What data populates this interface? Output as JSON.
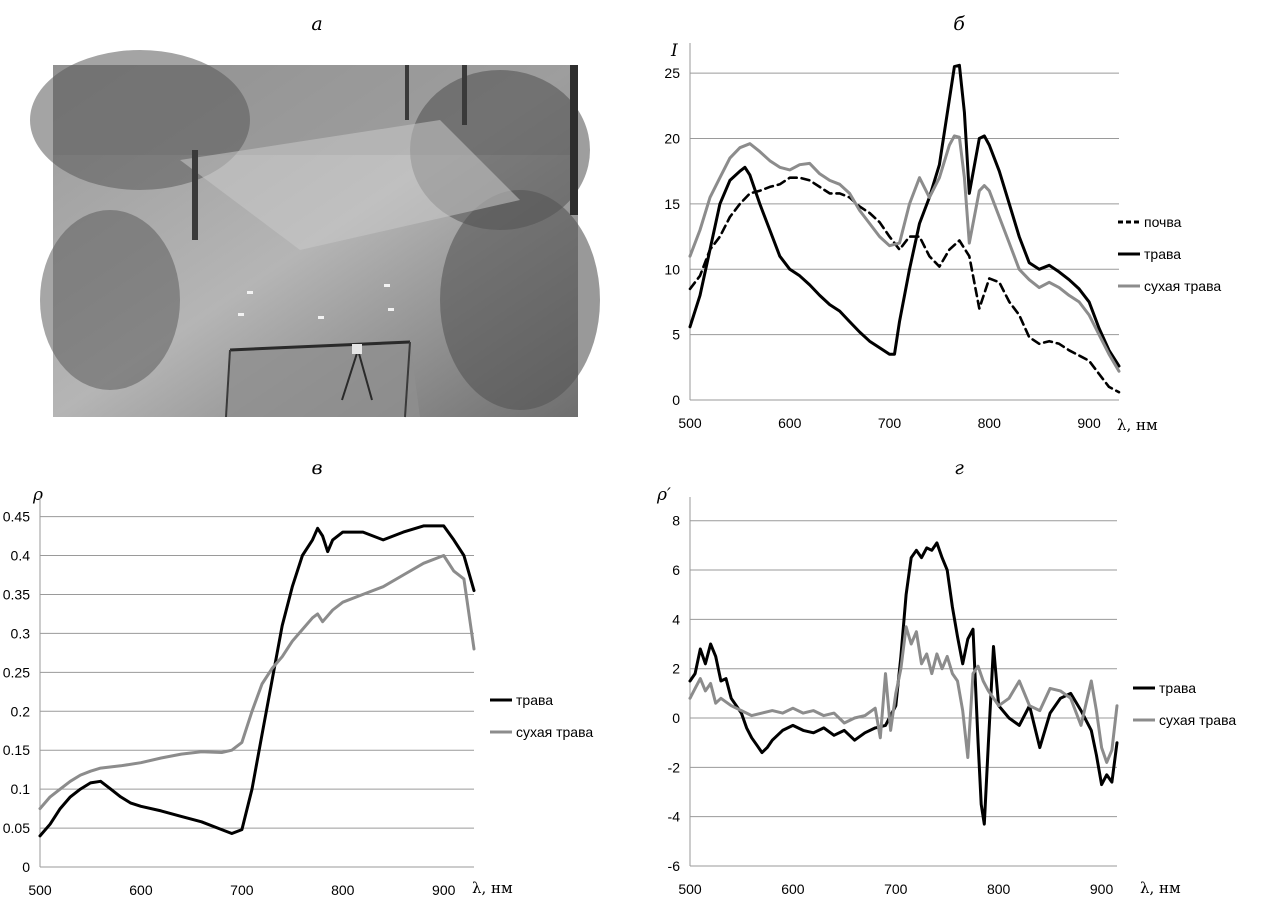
{
  "panels": {
    "a": {
      "title": "а"
    },
    "b": {
      "title": "б"
    },
    "v": {
      "title": "в"
    },
    "g": {
      "title": "г"
    }
  },
  "photo": {
    "description_icon": "field-photo"
  },
  "colors": {
    "black": "#000000",
    "gray": "#8c8c8c"
  },
  "chart_data": [
    {
      "id": "b",
      "type": "line",
      "title": "б",
      "ylabel": "I",
      "xlabel": "λ, нм",
      "xlim": [
        500,
        930
      ],
      "ylim": [
        0,
        27
      ],
      "xticks": [
        500,
        600,
        700,
        800,
        900
      ],
      "yticks": [
        0,
        5,
        10,
        15,
        20,
        25
      ],
      "grid": true,
      "legend_position": "right",
      "series": [
        {
          "name": "почва",
          "style": "dashed",
          "color": "#000000",
          "x": [
            500,
            510,
            520,
            530,
            540,
            550,
            560,
            570,
            580,
            590,
            600,
            610,
            620,
            630,
            640,
            650,
            660,
            670,
            680,
            690,
            700,
            710,
            720,
            730,
            740,
            750,
            760,
            770,
            780,
            790,
            800,
            810,
            820,
            830,
            840,
            850,
            860,
            870,
            880,
            890,
            900,
            910,
            920,
            930
          ],
          "y": [
            8.5,
            9.5,
            11.5,
            12.5,
            14,
            15,
            15.8,
            16,
            16.3,
            16.5,
            17,
            17,
            16.8,
            16.3,
            15.8,
            15.8,
            15.5,
            14.8,
            14.3,
            13.6,
            12.5,
            11.5,
            12.5,
            12.5,
            11,
            10.2,
            11.5,
            12.2,
            11,
            7,
            9.3,
            9,
            7.5,
            6.5,
            4.8,
            4.3,
            4.5,
            4.3,
            3.8,
            3.4,
            3,
            2,
            1,
            0.6
          ]
        },
        {
          "name": "трава",
          "style": "solid",
          "color": "#000000",
          "x": [
            500,
            510,
            520,
            530,
            540,
            550,
            555,
            560,
            570,
            580,
            590,
            600,
            610,
            620,
            630,
            640,
            650,
            660,
            670,
            680,
            690,
            700,
            705,
            710,
            720,
            730,
            740,
            750,
            760,
            765,
            770,
            775,
            780,
            790,
            795,
            800,
            810,
            820,
            830,
            840,
            850,
            860,
            870,
            880,
            890,
            900,
            910,
            920,
            930
          ],
          "y": [
            5.6,
            8,
            11.5,
            15,
            16.8,
            17.5,
            17.8,
            17.2,
            15,
            13,
            11,
            10,
            9.5,
            8.8,
            8,
            7.3,
            6.8,
            6,
            5.2,
            4.5,
            4,
            3.5,
            3.5,
            6,
            10,
            13.5,
            15.5,
            18,
            23,
            25.5,
            25.6,
            22,
            15.8,
            20,
            20.2,
            19.5,
            17.5,
            15,
            12.5,
            10.5,
            10,
            10.3,
            9.8,
            9.2,
            8.5,
            7.5,
            5.5,
            3.8,
            2.6
          ]
        },
        {
          "name": "сухая трава",
          "style": "solid",
          "color": "#8c8c8c",
          "x": [
            500,
            510,
            520,
            530,
            540,
            550,
            560,
            570,
            580,
            590,
            600,
            610,
            620,
            630,
            640,
            650,
            660,
            670,
            680,
            690,
            700,
            710,
            720,
            730,
            740,
            750,
            760,
            765,
            770,
            775,
            780,
            790,
            795,
            800,
            810,
            820,
            830,
            840,
            850,
            860,
            870,
            880,
            890,
            900,
            910,
            920,
            930
          ],
          "y": [
            11,
            13,
            15.5,
            17,
            18.5,
            19.3,
            19.6,
            19,
            18.3,
            17.8,
            17.6,
            18,
            18.1,
            17.3,
            16.8,
            16.5,
            15.8,
            14.5,
            13.5,
            12.5,
            11.8,
            12,
            15,
            17,
            15.5,
            17,
            19.5,
            20.2,
            20.1,
            17,
            12,
            16,
            16.4,
            16,
            14,
            12,
            10,
            9.2,
            8.6,
            9,
            8.6,
            8,
            7.5,
            6.5,
            5,
            3.5,
            2.2
          ]
        }
      ]
    },
    {
      "id": "v",
      "type": "line",
      "title": "в",
      "ylabel": "ρ",
      "xlabel": "λ, нм",
      "xlim": [
        500,
        930
      ],
      "ylim": [
        0,
        0.47
      ],
      "xticks": [
        500,
        600,
        700,
        800,
        900
      ],
      "yticks": [
        0,
        0.05,
        0.1,
        0.15,
        0.2,
        0.25,
        0.3,
        0.35,
        0.4,
        0.45
      ],
      "ytick_labels": [
        "0",
        "0.05",
        "0.1",
        "0.15",
        "0.2",
        "0.25",
        "0.3",
        "0.35",
        "0.4",
        "0.45"
      ],
      "grid": true,
      "legend_position": "right",
      "series": [
        {
          "name": "трава",
          "style": "solid",
          "color": "#000000",
          "x": [
            500,
            510,
            520,
            530,
            540,
            550,
            560,
            570,
            580,
            590,
            600,
            620,
            640,
            660,
            680,
            690,
            700,
            710,
            720,
            730,
            740,
            750,
            760,
            770,
            775,
            780,
            785,
            790,
            800,
            820,
            840,
            860,
            880,
            900,
            910,
            920,
            930
          ],
          "y": [
            0.04,
            0.055,
            0.075,
            0.09,
            0.1,
            0.108,
            0.11,
            0.1,
            0.09,
            0.082,
            0.078,
            0.072,
            0.065,
            0.058,
            0.048,
            0.043,
            0.048,
            0.1,
            0.17,
            0.24,
            0.31,
            0.36,
            0.4,
            0.42,
            0.435,
            0.425,
            0.405,
            0.42,
            0.43,
            0.43,
            0.42,
            0.43,
            0.438,
            0.438,
            0.42,
            0.4,
            0.355
          ]
        },
        {
          "name": "сухая трава",
          "style": "solid",
          "color": "#8c8c8c",
          "x": [
            500,
            510,
            520,
            530,
            540,
            550,
            560,
            580,
            600,
            620,
            640,
            660,
            680,
            690,
            700,
            710,
            720,
            730,
            740,
            750,
            760,
            770,
            775,
            780,
            790,
            800,
            820,
            840,
            860,
            880,
            900,
            910,
            920,
            930
          ],
          "y": [
            0.075,
            0.09,
            0.1,
            0.11,
            0.118,
            0.123,
            0.127,
            0.13,
            0.134,
            0.14,
            0.145,
            0.148,
            0.147,
            0.15,
            0.16,
            0.2,
            0.235,
            0.255,
            0.27,
            0.29,
            0.305,
            0.32,
            0.325,
            0.315,
            0.33,
            0.34,
            0.35,
            0.36,
            0.375,
            0.39,
            0.4,
            0.38,
            0.37,
            0.28
          ]
        }
      ]
    },
    {
      "id": "g",
      "type": "line",
      "title": "г",
      "ylabel": "ρ′",
      "xlabel": "λ, нм",
      "xlim": [
        500,
        915
      ],
      "ylim": [
        -6,
        8.8
      ],
      "xticks": [
        500,
        600,
        700,
        800,
        900
      ],
      "yticks": [
        -6,
        -4,
        -2,
        0,
        2,
        4,
        6,
        8
      ],
      "grid": true,
      "legend_position": "right",
      "series": [
        {
          "name": "трава",
          "style": "solid",
          "color": "#000000",
          "x": [
            500,
            505,
            510,
            515,
            520,
            525,
            530,
            535,
            540,
            545,
            550,
            555,
            560,
            565,
            570,
            575,
            580,
            590,
            600,
            610,
            620,
            630,
            640,
            650,
            660,
            670,
            680,
            690,
            700,
            705,
            710,
            715,
            720,
            725,
            730,
            735,
            740,
            745,
            750,
            755,
            760,
            765,
            770,
            775,
            780,
            783,
            786,
            790,
            795,
            800,
            810,
            820,
            830,
            840,
            850,
            860,
            870,
            880,
            890,
            895,
            900,
            905,
            910,
            915
          ],
          "y": [
            1.5,
            1.8,
            2.8,
            2.2,
            3,
            2.5,
            1.5,
            1.6,
            0.8,
            0.5,
            0.2,
            -0.4,
            -0.8,
            -1.1,
            -1.4,
            -1.2,
            -0.9,
            -0.5,
            -0.3,
            -0.5,
            -0.6,
            -0.4,
            -0.7,
            -0.5,
            -0.9,
            -0.6,
            -0.4,
            -0.3,
            0.5,
            2.5,
            5,
            6.5,
            6.8,
            6.5,
            6.9,
            6.8,
            7.1,
            6.5,
            6,
            4.5,
            3.3,
            2.2,
            3.2,
            3.6,
            -1,
            -3.5,
            -4.3,
            -1,
            2.9,
            0.5,
            0,
            -0.3,
            0.5,
            -1.2,
            0.2,
            0.8,
            1,
            0.3,
            -0.5,
            -1.5,
            -2.7,
            -2.3,
            -2.6,
            -1
          ]
        },
        {
          "name": "сухая трава",
          "style": "solid",
          "color": "#8c8c8c",
          "x": [
            500,
            505,
            510,
            515,
            520,
            525,
            530,
            540,
            550,
            560,
            570,
            580,
            590,
            600,
            610,
            620,
            630,
            640,
            650,
            660,
            670,
            680,
            685,
            690,
            695,
            700,
            705,
            710,
            715,
            720,
            725,
            730,
            735,
            740,
            745,
            750,
            755,
            760,
            765,
            770,
            775,
            780,
            785,
            790,
            800,
            810,
            820,
            830,
            840,
            850,
            860,
            870,
            880,
            890,
            895,
            900,
            905,
            910,
            915
          ],
          "y": [
            0.8,
            1.2,
            1.6,
            1.1,
            1.4,
            0.6,
            0.8,
            0.5,
            0.3,
            0.1,
            0.2,
            0.3,
            0.2,
            0.4,
            0.2,
            0.3,
            0.1,
            0.2,
            -0.2,
            0,
            0.1,
            0.4,
            -0.8,
            1.8,
            -0.5,
            1,
            2,
            3.7,
            3,
            3.5,
            2.2,
            2.6,
            1.8,
            2.6,
            2,
            2.5,
            1.8,
            1.5,
            0.3,
            -1.6,
            1.8,
            2.1,
            1.5,
            1.1,
            0.5,
            0.8,
            1.5,
            0.5,
            0.3,
            1.2,
            1.1,
            0.8,
            -0.3,
            1.5,
            0.3,
            -1.2,
            -1.8,
            -1.3,
            0.5
          ]
        }
      ]
    }
  ]
}
